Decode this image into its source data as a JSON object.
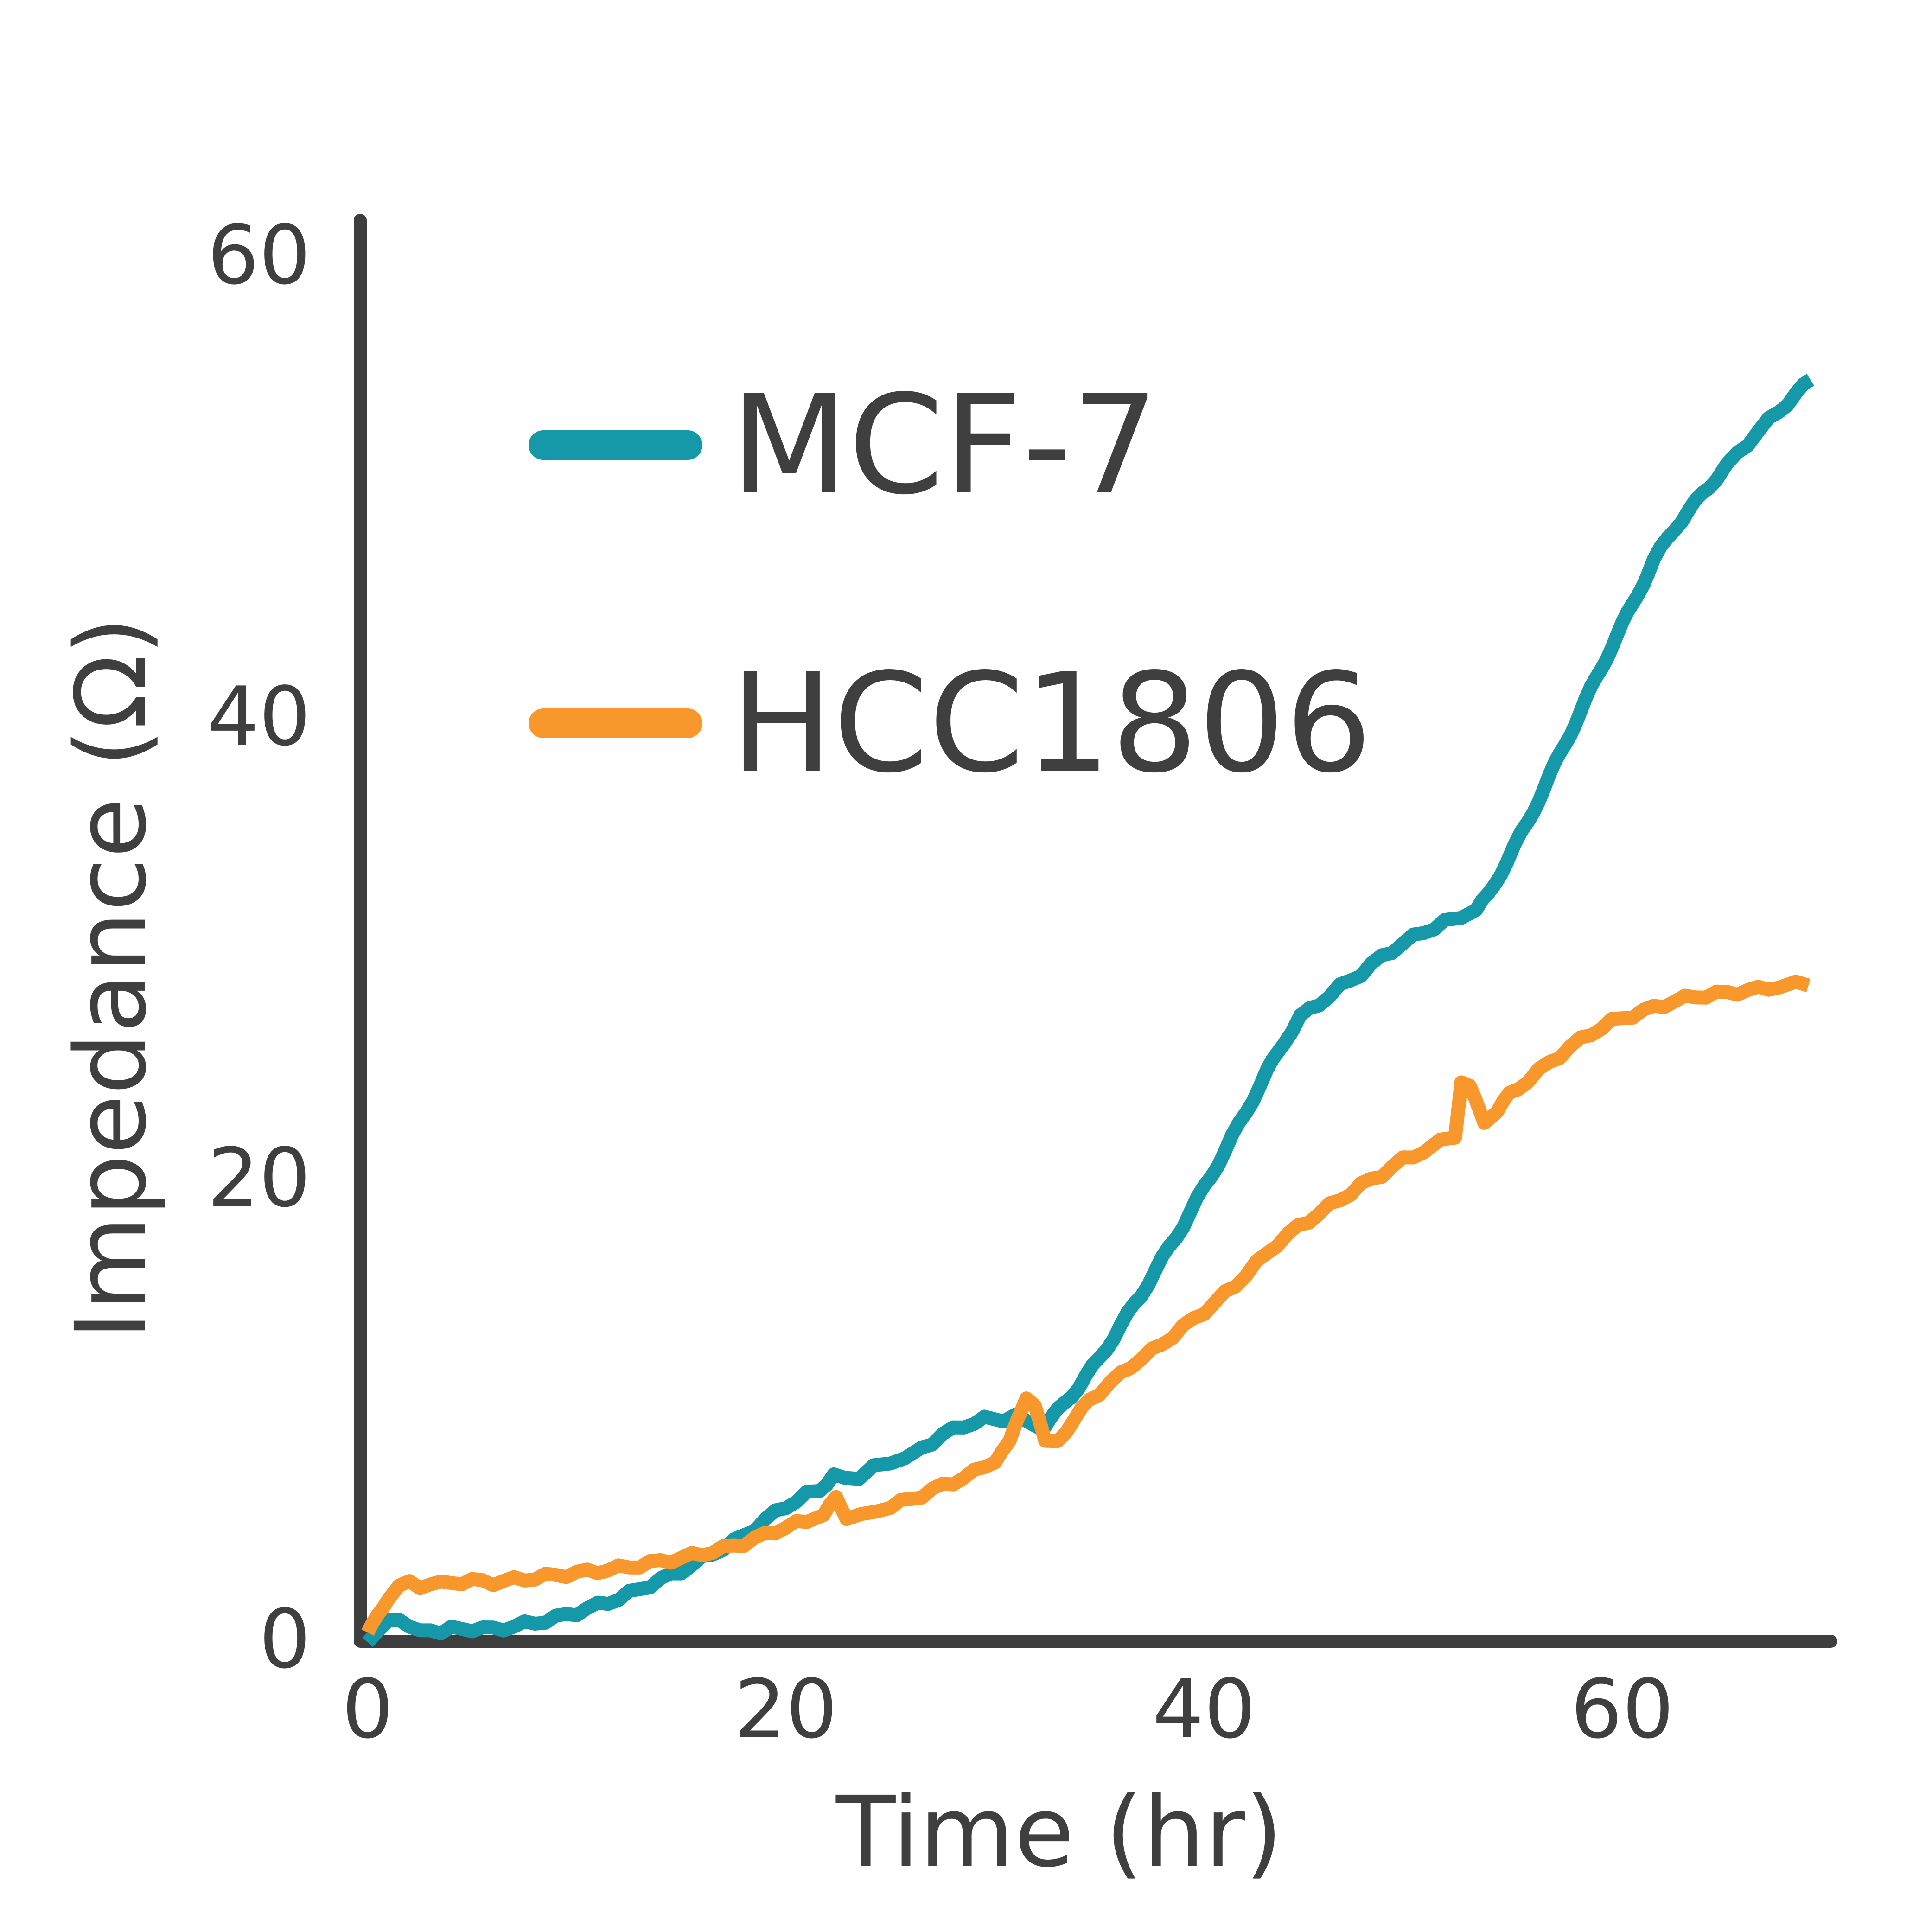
{
  "figure": {
    "background_color": "#ffffff",
    "axis_color": "#3e3e3e",
    "text_color": "#3f3f3f"
  },
  "chart_data": {
    "type": "line",
    "title": "",
    "xlabel": "Time (hr)",
    "ylabel": "Impedance (Ω)",
    "xlim": [
      0,
      69.5
    ],
    "ylim": [
      0,
      60
    ],
    "x_ticks": [
      0,
      20,
      40,
      60
    ],
    "y_ticks": [
      0,
      20,
      40,
      60
    ],
    "grid": false,
    "legend_position": "upper-left",
    "series": [
      {
        "name": "MCF-7",
        "color": "#1598A8",
        "points": [
          [
            0,
            0
          ],
          [
            0.5,
            0.3
          ],
          [
            1,
            0.8
          ],
          [
            1.5,
            1.0
          ],
          [
            2,
            0.55
          ],
          [
            2.5,
            0.3
          ],
          [
            3,
            0.5
          ],
          [
            3.5,
            0.35
          ],
          [
            4,
            0.45
          ],
          [
            5,
            0.5
          ],
          [
            6,
            0.45
          ],
          [
            7,
            0.6
          ],
          [
            8,
            0.75
          ],
          [
            9,
            0.95
          ],
          [
            10,
            1.2
          ],
          [
            11,
            1.5
          ],
          [
            12,
            1.8
          ],
          [
            13,
            2.2
          ],
          [
            14,
            2.6
          ],
          [
            15,
            3.0
          ],
          [
            16,
            3.5
          ],
          [
            17,
            4.0
          ],
          [
            18,
            4.5
          ],
          [
            19,
            5.2
          ],
          [
            20,
            5.8
          ],
          [
            21,
            6.3
          ],
          [
            21.6,
            6.5
          ],
          [
            22.3,
            7.2
          ],
          [
            22.8,
            6.9
          ],
          [
            23.5,
            7.1
          ],
          [
            24.2,
            7.5
          ],
          [
            25,
            7.7
          ],
          [
            25.7,
            7.9
          ],
          [
            26.5,
            8.3
          ],
          [
            27.5,
            8.9
          ],
          [
            28.5,
            9.3
          ],
          [
            29.5,
            9.55
          ],
          [
            30.4,
            9.6
          ],
          [
            31,
            9.7
          ],
          [
            31.6,
            9.4
          ],
          [
            32.3,
            9.2
          ],
          [
            33,
            9.9
          ],
          [
            34,
            11.0
          ],
          [
            35,
            12.2
          ],
          [
            36,
            13.6
          ],
          [
            37,
            15.0
          ],
          [
            38,
            16.5
          ],
          [
            39,
            18.0
          ],
          [
            40,
            19.6
          ],
          [
            41,
            21.2
          ],
          [
            42,
            22.9
          ],
          [
            43,
            24.6
          ],
          [
            43.8,
            25.9
          ],
          [
            44.6,
            27.0
          ],
          [
            45.5,
            27.6
          ],
          [
            46.5,
            28.3
          ],
          [
            47.5,
            28.9
          ],
          [
            48.5,
            29.6
          ],
          [
            49.5,
            30.2
          ],
          [
            50.5,
            30.7
          ],
          [
            51.5,
            31.1
          ],
          [
            52.3,
            31.4
          ],
          [
            53,
            31.6
          ],
          [
            53.6,
            32.3
          ],
          [
            54.5,
            33.8
          ],
          [
            55.5,
            35.5
          ],
          [
            56.5,
            37.4
          ],
          [
            57.5,
            39.3
          ],
          [
            58.5,
            41.2
          ],
          [
            59.5,
            43.1
          ],
          [
            60.5,
            44.9
          ],
          [
            61.5,
            46.8
          ],
          [
            62.5,
            48.2
          ],
          [
            63.5,
            49.3
          ],
          [
            64.5,
            50.4
          ],
          [
            65.5,
            51.4
          ],
          [
            66.5,
            52.4
          ],
          [
            67.5,
            53.3
          ],
          [
            68.3,
            54.0
          ],
          [
            69,
            54.6
          ]
        ]
      },
      {
        "name": "HCC1806",
        "color": "#F8982C",
        "points": [
          [
            0,
            0.2
          ],
          [
            0.5,
            1.1
          ],
          [
            1,
            1.9
          ],
          [
            1.5,
            2.3
          ],
          [
            2,
            2.45
          ],
          [
            2.5,
            2.35
          ],
          [
            3,
            2.45
          ],
          [
            3.5,
            2.4
          ],
          [
            4,
            2.5
          ],
          [
            5,
            2.55
          ],
          [
            6,
            2.5
          ],
          [
            7,
            2.6
          ],
          [
            8,
            2.7
          ],
          [
            9,
            2.8
          ],
          [
            10,
            2.9
          ],
          [
            11,
            3.0
          ],
          [
            12,
            3.1
          ],
          [
            13,
            3.25
          ],
          [
            14,
            3.4
          ],
          [
            15,
            3.55
          ],
          [
            16,
            3.75
          ],
          [
            17,
            3.95
          ],
          [
            18,
            4.2
          ],
          [
            19,
            4.55
          ],
          [
            20,
            4.9
          ],
          [
            21,
            5.15
          ],
          [
            21.8,
            5.4
          ],
          [
            22.4,
            6.1
          ],
          [
            22.9,
            5.35
          ],
          [
            23.6,
            5.4
          ],
          [
            24.3,
            5.55
          ],
          [
            25,
            5.8
          ],
          [
            26,
            6.1
          ],
          [
            27,
            6.5
          ],
          [
            28,
            6.85
          ],
          [
            29,
            7.25
          ],
          [
            30,
            7.8
          ],
          [
            30.7,
            8.5
          ],
          [
            31.1,
            9.6
          ],
          [
            31.5,
            10.6
          ],
          [
            31.9,
            10.2
          ],
          [
            32.4,
            8.5
          ],
          [
            33,
            8.7
          ],
          [
            33.8,
            9.5
          ],
          [
            34.5,
            10.4
          ],
          [
            35.5,
            11.1
          ],
          [
            36.5,
            11.9
          ],
          [
            37.5,
            12.5
          ],
          [
            38.5,
            13.2
          ],
          [
            39.5,
            13.9
          ],
          [
            40.5,
            14.6
          ],
          [
            41.5,
            15.4
          ],
          [
            42.5,
            16.3
          ],
          [
            43.5,
            17.2
          ],
          [
            44.5,
            17.9
          ],
          [
            45.5,
            18.5
          ],
          [
            46.5,
            19.1
          ],
          [
            47.5,
            19.7
          ],
          [
            48.5,
            20.2
          ],
          [
            49.5,
            20.8
          ],
          [
            50.5,
            21.2
          ],
          [
            51.3,
            21.6
          ],
          [
            52,
            21.9
          ],
          [
            52.3,
            24.2
          ],
          [
            52.7,
            23.9
          ],
          [
            53.4,
            22.5
          ],
          [
            54,
            22.9
          ],
          [
            54.6,
            23.6
          ],
          [
            55.5,
            24.3
          ],
          [
            56.5,
            25.0
          ],
          [
            57.5,
            25.7
          ],
          [
            58.5,
            26.3
          ],
          [
            59.5,
            26.8
          ],
          [
            60.5,
            27.1
          ],
          [
            61.5,
            27.4
          ],
          [
            62.5,
            27.7
          ],
          [
            63.5,
            27.9
          ],
          [
            64.5,
            28.0
          ],
          [
            65.5,
            28.1
          ],
          [
            66.5,
            28.2
          ],
          [
            67.5,
            28.35
          ],
          [
            68.3,
            28.45
          ],
          [
            68.9,
            28.5
          ]
        ]
      }
    ]
  },
  "legend": {
    "items": [
      {
        "label": "MCF-7"
      },
      {
        "label": "HCC1806"
      }
    ]
  }
}
